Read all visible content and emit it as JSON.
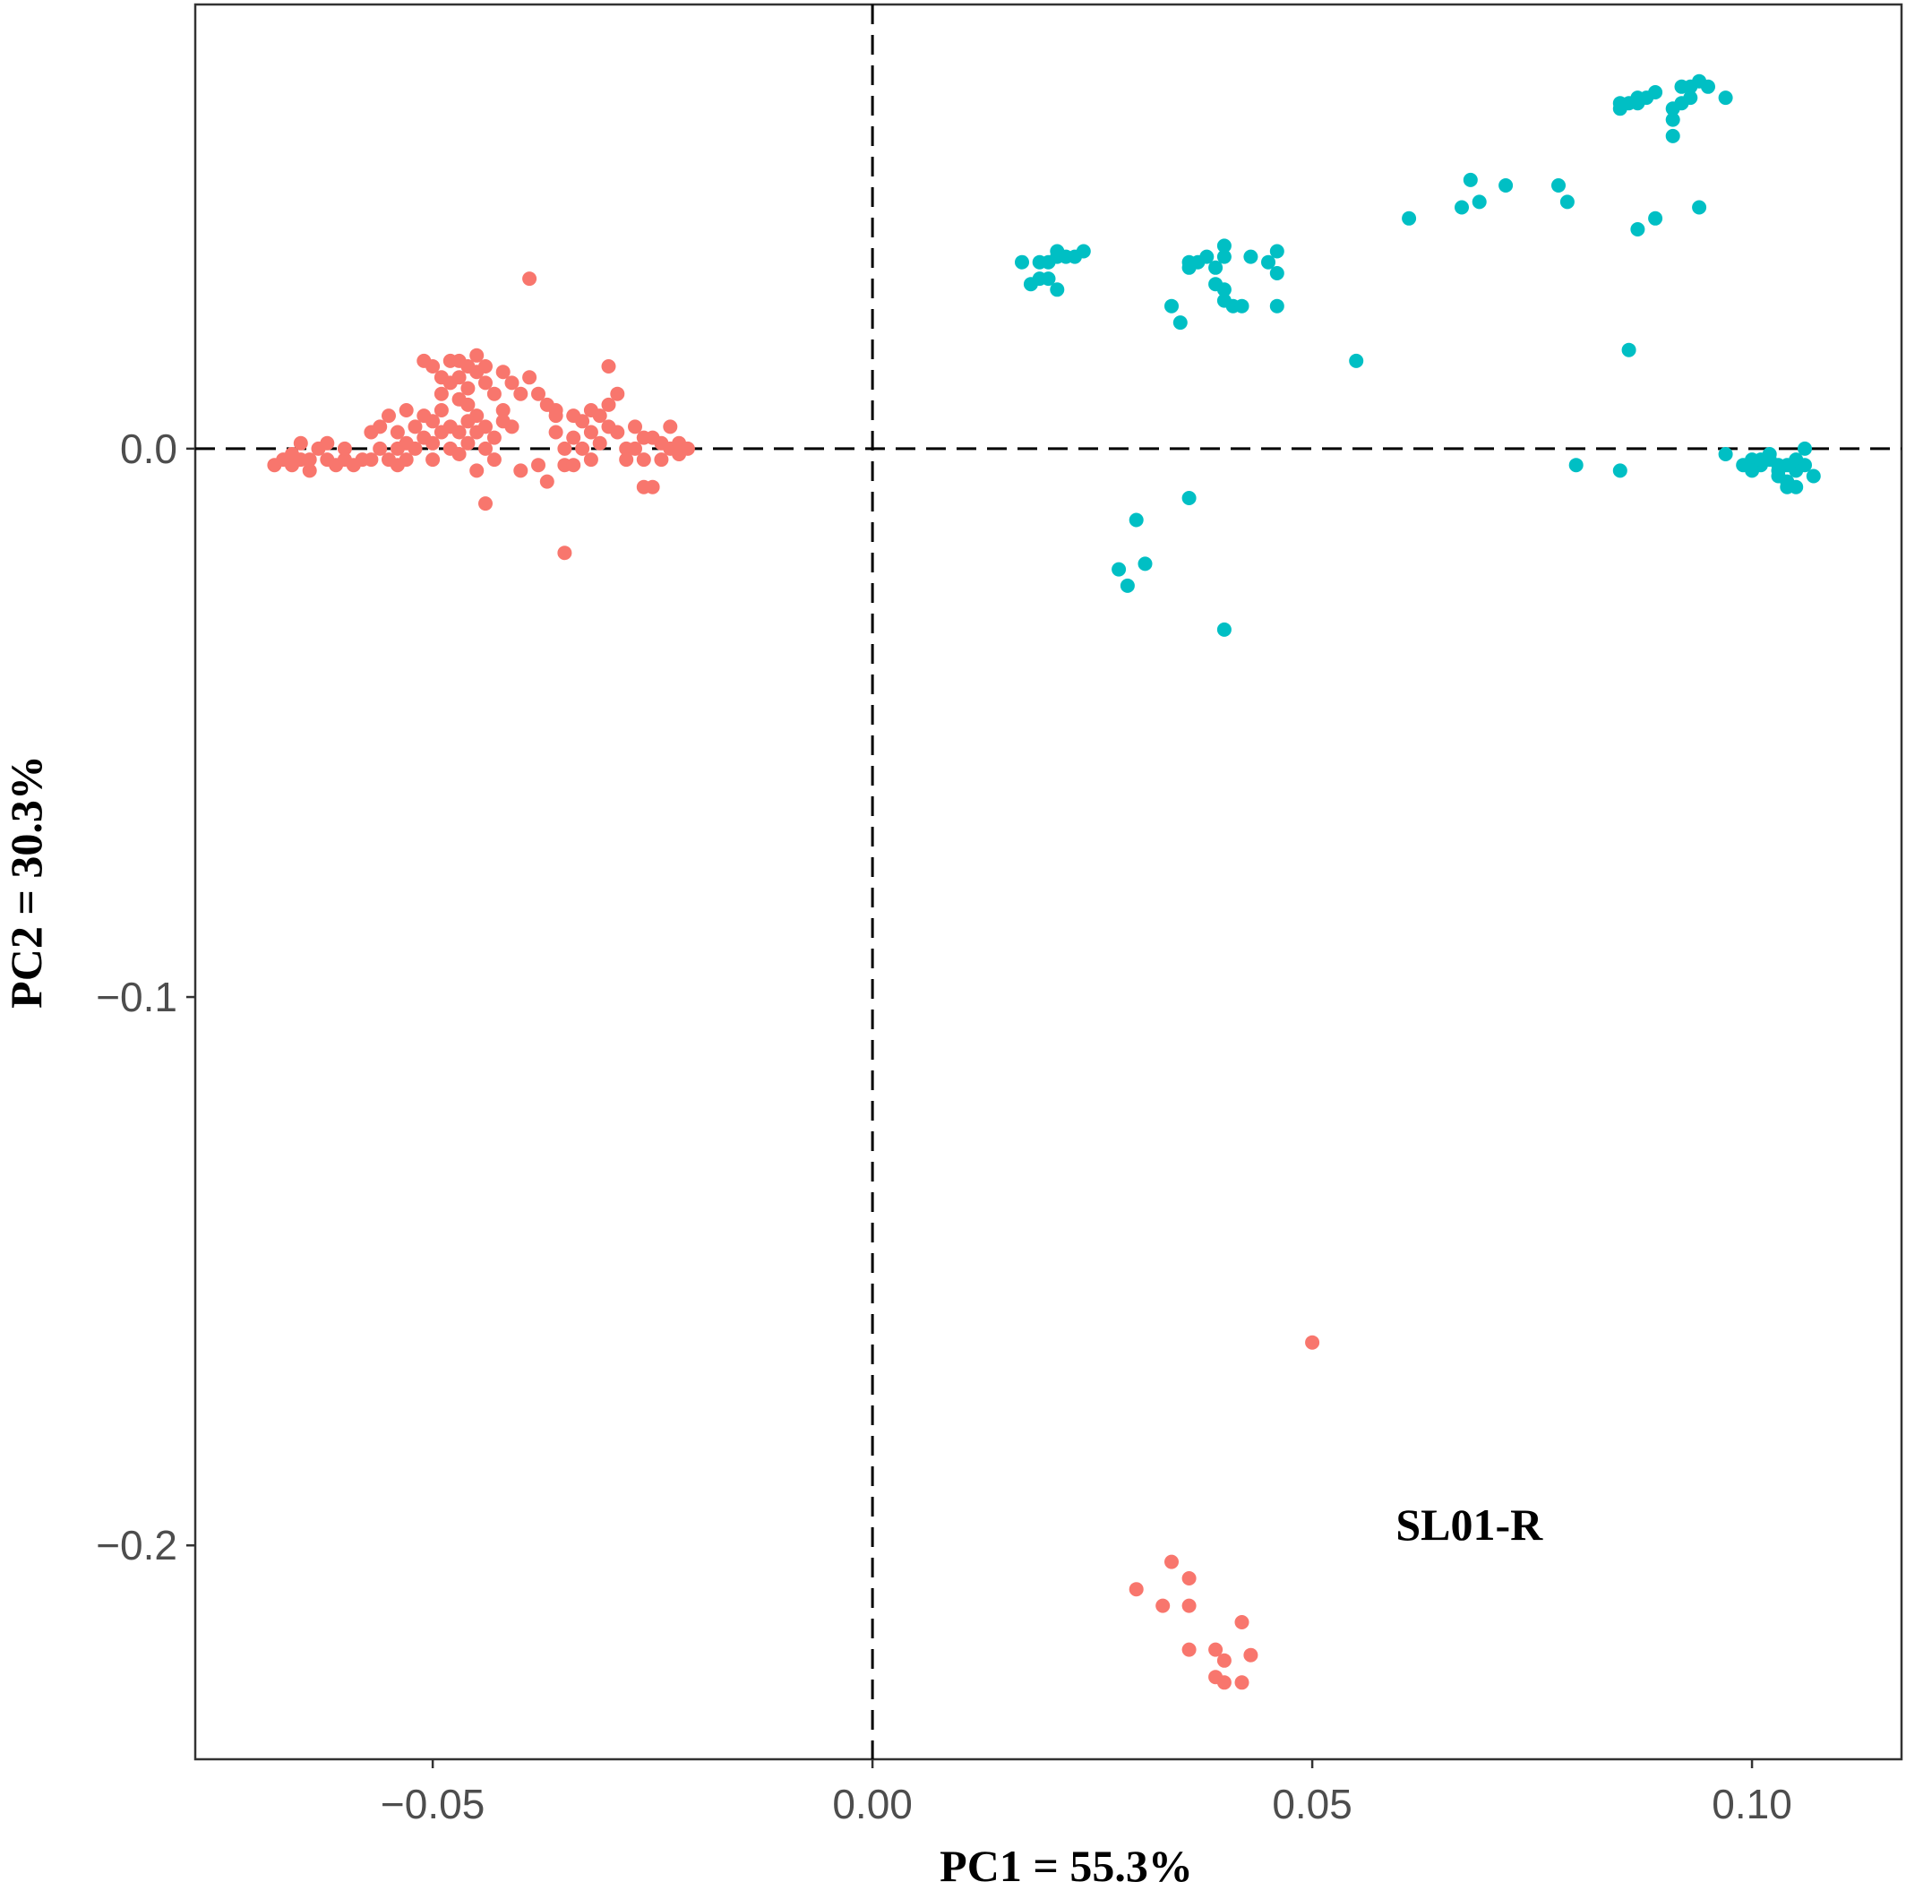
{
  "chart_data": {
    "type": "scatter",
    "title": "",
    "xlabel": "PC1 = 55.3%",
    "ylabel": "PC2 = 30.3%",
    "xlim": [
      -0.077,
      0.117
    ],
    "ylim": [
      -0.239,
      0.081
    ],
    "x_ticks": [
      {
        "value": -0.05,
        "label": "−0.05"
      },
      {
        "value": 0.0,
        "label": "0.00"
      },
      {
        "value": 0.05,
        "label": "0.05"
      },
      {
        "value": 0.1,
        "label": "0.10"
      }
    ],
    "y_ticks": [
      {
        "value": 0.0,
        "label": "0.0"
      },
      {
        "value": -0.1,
        "label": "−0.1"
      },
      {
        "value": -0.2,
        "label": "−0.2"
      }
    ],
    "grid": false,
    "reference_lines": {
      "x": 0,
      "y": 0,
      "style": "dashed"
    },
    "annotation": {
      "text": "SL01-R",
      "x": 0.0595,
      "y": -0.199
    },
    "series": [
      {
        "color": "#F8766D",
        "points": [
          [
            -0.068,
            -0.003
          ],
          [
            -0.067,
            -0.002
          ],
          [
            -0.066,
            -0.001
          ],
          [
            -0.066,
            -0.003
          ],
          [
            -0.065,
            -0.002
          ],
          [
            -0.065,
            0.001
          ],
          [
            -0.064,
            -0.004
          ],
          [
            -0.064,
            -0.002
          ],
          [
            -0.063,
            0.0
          ],
          [
            -0.062,
            -0.002
          ],
          [
            -0.062,
            0.001
          ],
          [
            -0.061,
            -0.003
          ],
          [
            -0.06,
            -0.002
          ],
          [
            -0.06,
            0.0
          ],
          [
            -0.059,
            -0.003
          ],
          [
            -0.058,
            -0.002
          ],
          [
            -0.057,
            -0.002
          ],
          [
            -0.057,
            0.003
          ],
          [
            -0.056,
            0.0
          ],
          [
            -0.055,
            -0.002
          ],
          [
            -0.054,
            0.0
          ],
          [
            -0.054,
            -0.003
          ],
          [
            -0.053,
            -0.002
          ],
          [
            -0.053,
            0.001
          ],
          [
            -0.056,
            0.004
          ],
          [
            -0.055,
            0.006
          ],
          [
            -0.054,
            0.003
          ],
          [
            -0.053,
            0.007
          ],
          [
            -0.052,
            0.004
          ],
          [
            -0.052,
            0.0
          ],
          [
            -0.051,
            0.006
          ],
          [
            -0.051,
            0.002
          ],
          [
            -0.05,
            0.001
          ],
          [
            -0.05,
            0.005
          ],
          [
            -0.049,
            0.007
          ],
          [
            -0.049,
            0.003
          ],
          [
            -0.048,
            0.0
          ],
          [
            -0.048,
            0.004
          ],
          [
            -0.047,
            -0.001
          ],
          [
            -0.047,
            0.003
          ],
          [
            -0.046,
            0.005
          ],
          [
            -0.046,
            0.001
          ],
          [
            -0.045,
            0.003
          ],
          [
            -0.045,
            0.006
          ],
          [
            -0.044,
            0.0
          ],
          [
            -0.044,
            0.004
          ],
          [
            -0.043,
            0.002
          ],
          [
            -0.042,
            0.005
          ],
          [
            -0.051,
            0.016
          ],
          [
            -0.05,
            0.015
          ],
          [
            -0.049,
            0.013
          ],
          [
            -0.048,
            0.016
          ],
          [
            -0.048,
            0.012
          ],
          [
            -0.047,
            0.016
          ],
          [
            -0.047,
            0.013
          ],
          [
            -0.046,
            0.015
          ],
          [
            -0.046,
            0.011
          ],
          [
            -0.045,
            0.014
          ],
          [
            -0.045,
            0.017
          ],
          [
            -0.044,
            0.012
          ],
          [
            -0.044,
            0.015
          ],
          [
            -0.043,
            0.01
          ],
          [
            -0.042,
            0.014
          ],
          [
            -0.041,
            0.012
          ],
          [
            -0.04,
            0.01
          ],
          [
            -0.039,
            0.013
          ],
          [
            -0.038,
            0.01
          ],
          [
            -0.037,
            0.008
          ],
          [
            -0.036,
            0.007
          ],
          [
            -0.05,
            -0.002
          ],
          [
            -0.049,
            0.01
          ],
          [
            -0.047,
            0.009
          ],
          [
            -0.046,
            0.008
          ],
          [
            -0.045,
            -0.004
          ],
          [
            -0.044,
            -0.01
          ],
          [
            -0.043,
            -0.002
          ],
          [
            -0.042,
            0.007
          ],
          [
            -0.041,
            0.004
          ],
          [
            -0.04,
            -0.004
          ],
          [
            -0.039,
            0.031
          ],
          [
            -0.036,
            0.003
          ],
          [
            -0.035,
            0.0
          ],
          [
            -0.035,
            -0.003
          ],
          [
            -0.034,
            0.002
          ],
          [
            -0.034,
            -0.003
          ],
          [
            -0.033,
            0.005
          ],
          [
            -0.033,
            0.0
          ],
          [
            -0.032,
            0.003
          ],
          [
            -0.032,
            -0.002
          ],
          [
            -0.031,
            0.006
          ],
          [
            -0.031,
            0.001
          ],
          [
            -0.03,
            0.004
          ],
          [
            -0.03,
            0.008
          ],
          [
            -0.03,
            0.015
          ],
          [
            -0.029,
            0.01
          ],
          [
            -0.029,
            0.003
          ],
          [
            -0.028,
            0.0
          ],
          [
            -0.028,
            -0.002
          ],
          [
            -0.027,
            0.004
          ],
          [
            -0.027,
            0.0
          ],
          [
            -0.026,
            0.002
          ],
          [
            -0.026,
            -0.002
          ],
          [
            -0.026,
            -0.007
          ],
          [
            -0.025,
            -0.007
          ],
          [
            -0.025,
            0.002
          ],
          [
            -0.024,
            -0.002
          ],
          [
            -0.024,
            0.001
          ],
          [
            -0.023,
            0.0
          ],
          [
            -0.023,
            0.004
          ],
          [
            -0.022,
            -0.001
          ],
          [
            -0.022,
            0.001
          ],
          [
            -0.021,
            0.0
          ],
          [
            -0.035,
            -0.019
          ],
          [
            -0.037,
            -0.006
          ],
          [
            -0.036,
            0.006
          ],
          [
            -0.038,
            -0.003
          ],
          [
            -0.034,
            0.006
          ],
          [
            -0.032,
            0.007
          ],
          [
            0.05,
            -0.163
          ],
          [
            0.034,
            -0.203
          ],
          [
            0.03,
            -0.208
          ],
          [
            0.036,
            -0.206
          ],
          [
            0.033,
            -0.211
          ],
          [
            0.036,
            -0.211
          ],
          [
            0.042,
            -0.214
          ],
          [
            0.036,
            -0.219
          ],
          [
            0.039,
            -0.219
          ],
          [
            0.04,
            -0.221
          ],
          [
            0.043,
            -0.22
          ],
          [
            0.039,
            -0.224
          ],
          [
            0.04,
            -0.225
          ],
          [
            0.042,
            -0.225
          ]
        ]
      },
      {
        "color": "#00BFC4",
        "points": [
          [
            0.017,
            0.034
          ],
          [
            0.019,
            0.034
          ],
          [
            0.02,
            0.034
          ],
          [
            0.021,
            0.035
          ],
          [
            0.021,
            0.036
          ],
          [
            0.022,
            0.035
          ],
          [
            0.023,
            0.035
          ],
          [
            0.024,
            0.036
          ],
          [
            0.018,
            0.03
          ],
          [
            0.019,
            0.031
          ],
          [
            0.02,
            0.031
          ],
          [
            0.021,
            0.029
          ],
          [
            0.034,
            0.026
          ],
          [
            0.035,
            0.023
          ],
          [
            0.036,
            0.033
          ],
          [
            0.036,
            0.034
          ],
          [
            0.037,
            0.034
          ],
          [
            0.038,
            0.035
          ],
          [
            0.039,
            0.033
          ],
          [
            0.04,
            0.037
          ],
          [
            0.04,
            0.035
          ],
          [
            0.039,
            0.03
          ],
          [
            0.04,
            0.029
          ],
          [
            0.041,
            0.026
          ],
          [
            0.04,
            0.027
          ],
          [
            0.042,
            0.026
          ],
          [
            0.043,
            0.035
          ],
          [
            0.045,
            0.034
          ],
          [
            0.046,
            0.036
          ],
          [
            0.046,
            0.032
          ],
          [
            0.046,
            0.026
          ],
          [
            0.055,
            0.016
          ],
          [
            0.061,
            0.042
          ],
          [
            0.067,
            0.044
          ],
          [
            0.068,
            0.049
          ],
          [
            0.069,
            0.045
          ],
          [
            0.072,
            0.048
          ],
          [
            0.078,
            0.048
          ],
          [
            0.079,
            0.045
          ],
          [
            0.085,
            0.063
          ],
          [
            0.085,
            0.062
          ],
          [
            0.086,
            0.063
          ],
          [
            0.087,
            0.063
          ],
          [
            0.087,
            0.064
          ],
          [
            0.088,
            0.064
          ],
          [
            0.089,
            0.065
          ],
          [
            0.091,
            0.06
          ],
          [
            0.091,
            0.057
          ],
          [
            0.091,
            0.062
          ],
          [
            0.092,
            0.066
          ],
          [
            0.093,
            0.066
          ],
          [
            0.094,
            0.067
          ],
          [
            0.095,
            0.066
          ],
          [
            0.097,
            0.064
          ],
          [
            0.092,
            0.063
          ],
          [
            0.093,
            0.064
          ],
          [
            0.094,
            0.044
          ],
          [
            0.089,
            0.042
          ],
          [
            0.087,
            0.04
          ],
          [
            0.086,
            0.018
          ],
          [
            0.03,
            -0.013
          ],
          [
            0.028,
            -0.022
          ],
          [
            0.031,
            -0.021
          ],
          [
            0.029,
            -0.025
          ],
          [
            0.036,
            -0.009
          ],
          [
            0.04,
            -0.033
          ],
          [
            0.08,
            -0.003
          ],
          [
            0.085,
            -0.004
          ],
          [
            0.097,
            -0.001
          ],
          [
            0.099,
            -0.003
          ],
          [
            0.1,
            -0.002
          ],
          [
            0.101,
            -0.003
          ],
          [
            0.102,
            -0.002
          ],
          [
            0.103,
            -0.003
          ],
          [
            0.103,
            -0.005
          ],
          [
            0.104,
            -0.003
          ],
          [
            0.104,
            -0.006
          ],
          [
            0.105,
            -0.004
          ],
          [
            0.105,
            -0.002
          ],
          [
            0.106,
            -0.003
          ],
          [
            0.106,
            0.0
          ],
          [
            0.107,
            -0.005
          ],
          [
            0.104,
            -0.007
          ],
          [
            0.105,
            -0.007
          ],
          [
            0.103,
            -0.004
          ],
          [
            0.102,
            -0.001
          ],
          [
            0.101,
            -0.002
          ],
          [
            0.1,
            -0.004
          ]
        ]
      }
    ]
  }
}
